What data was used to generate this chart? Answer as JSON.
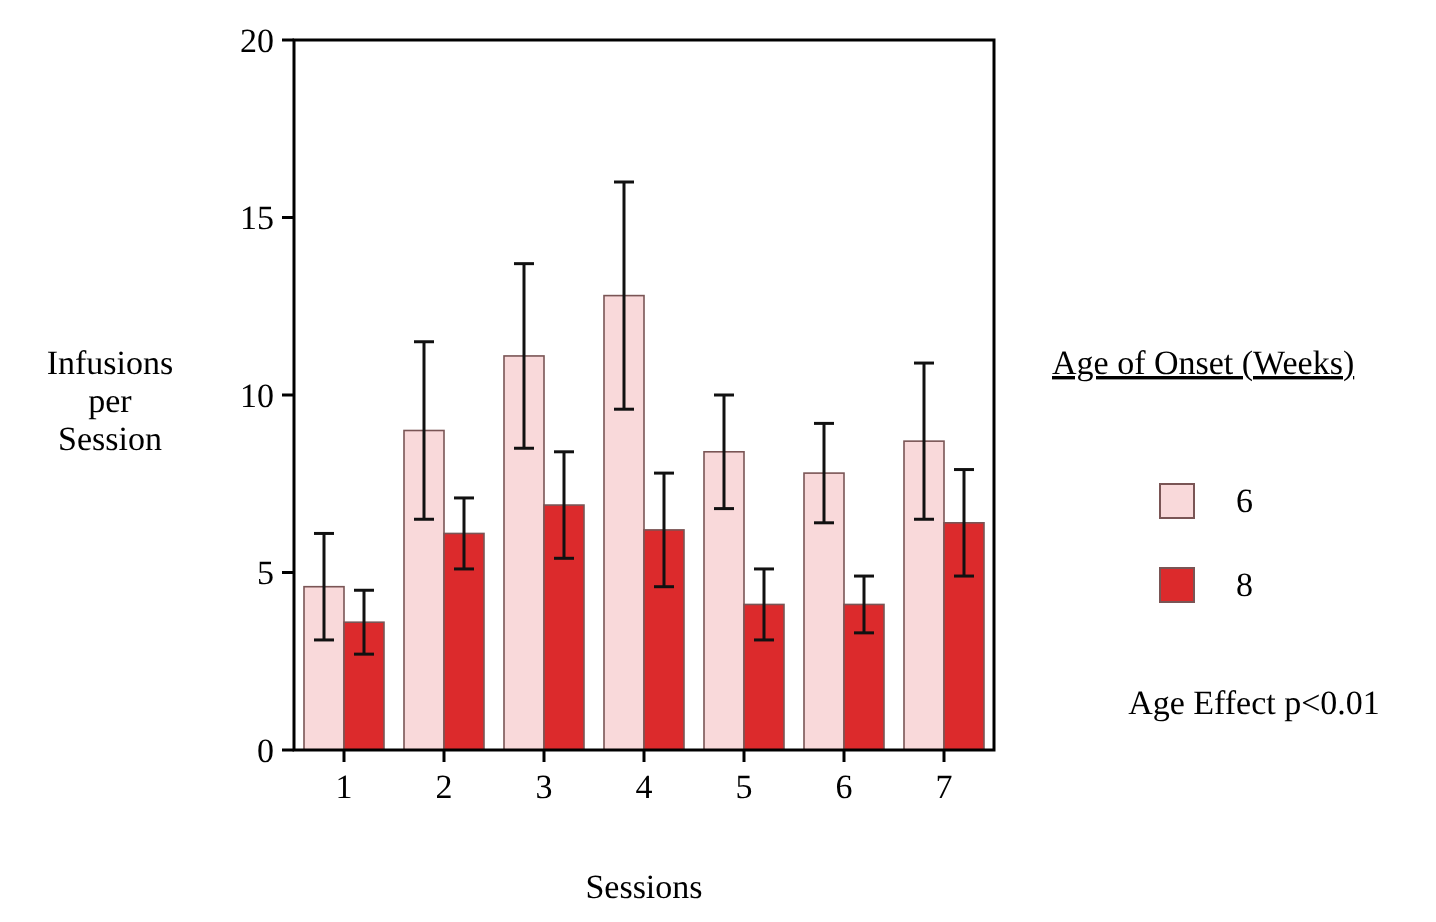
{
  "chart_data": {
    "type": "bar",
    "xlabel": "Sessions",
    "ylabel": "Infusions per Session",
    "legend_title": "Age of Onset (Weeks)",
    "legend": "right",
    "categories": [
      "1",
      "2",
      "3",
      "4",
      "5",
      "6",
      "7"
    ],
    "ylim": [
      0,
      20
    ],
    "yticks": [
      0,
      5,
      10,
      15,
      20
    ],
    "grid": false,
    "series": [
      {
        "name": "6",
        "color": "#f9d9da",
        "values": [
          4.6,
          9.0,
          11.1,
          12.8,
          8.4,
          7.8,
          8.7
        ],
        "errors": [
          1.5,
          2.5,
          2.6,
          3.2,
          1.6,
          1.4,
          2.2
        ]
      },
      {
        "name": "8",
        "color": "#dc2a2c",
        "values": [
          3.6,
          6.1,
          6.9,
          6.2,
          4.1,
          4.1,
          6.4
        ],
        "errors": [
          0.9,
          1.0,
          1.5,
          1.6,
          1.0,
          0.8,
          1.5
        ]
      }
    ],
    "annotations": [
      "Age Effect p<0.01"
    ]
  }
}
